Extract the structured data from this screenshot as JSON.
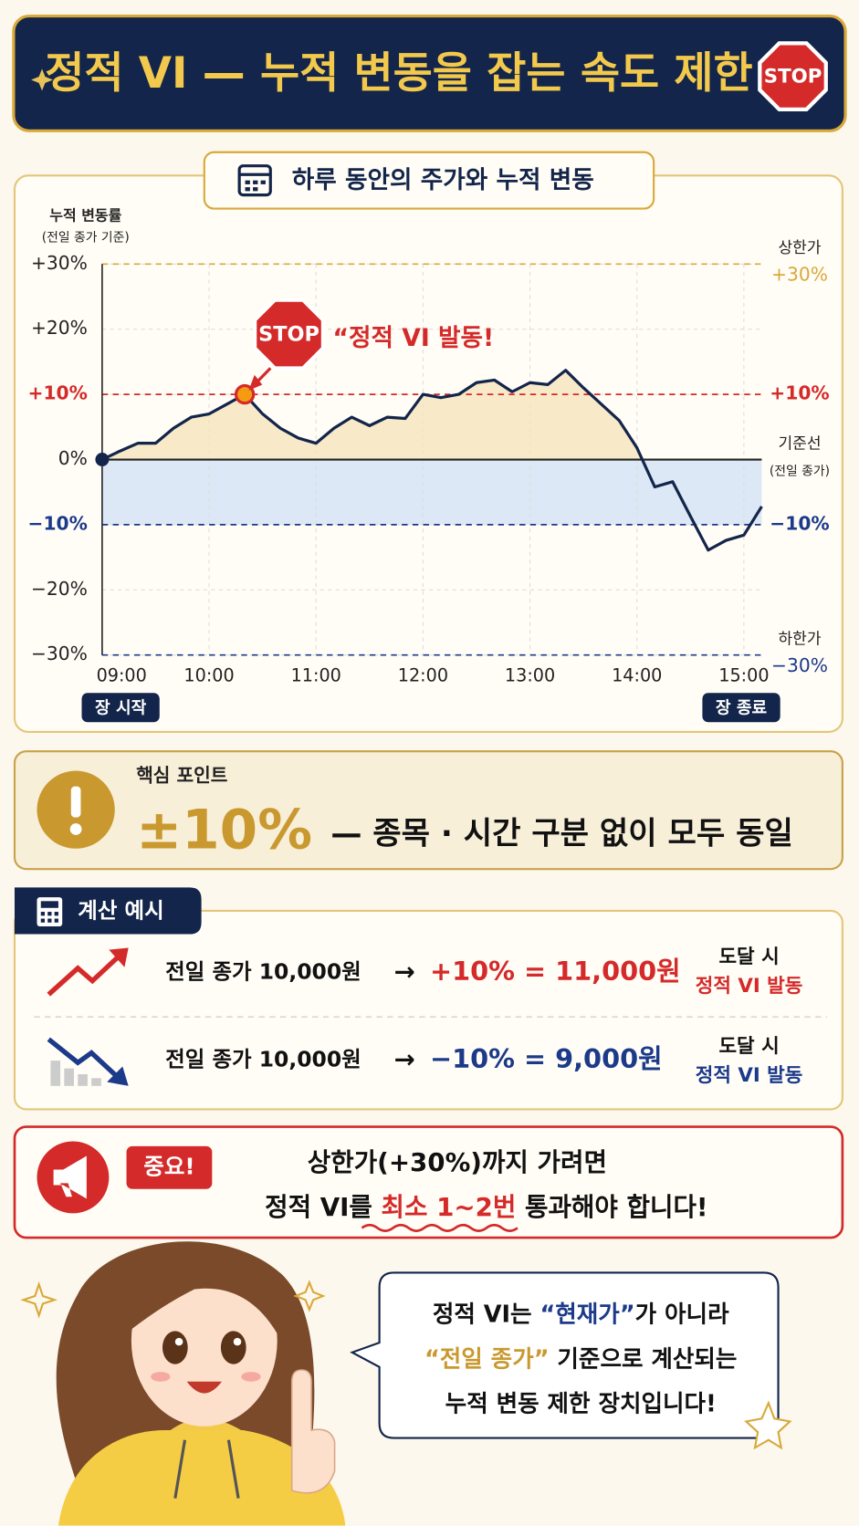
{
  "header": {
    "title": "정적 VI — 누적 변동을 잡는 속도 제한",
    "badge": "STOP"
  },
  "chart_data": {
    "type": "line",
    "title": "하루 동안의 주가와 누적 변동",
    "y_label": [
      "누적 변동률",
      "(전일 종가 기준)"
    ],
    "x": [
      "09:00",
      "09:10",
      "09:20",
      "09:30",
      "09:40",
      "09:50",
      "10:00",
      "10:10",
      "10:20",
      "10:30",
      "10:40",
      "10:50",
      "11:00",
      "11:10",
      "11:20",
      "11:30",
      "11:40",
      "11:50",
      "12:00",
      "12:10",
      "12:20",
      "12:30",
      "12:40",
      "12:50",
      "13:00",
      "13:10",
      "13:20",
      "13:30",
      "13:40",
      "13:50",
      "14:00",
      "14:10",
      "14:20",
      "14:30",
      "14:40",
      "14:50",
      "15:00",
      "15:10"
    ],
    "values": [
      0,
      1.3,
      2.5,
      2.5,
      4.8,
      6.5,
      7,
      8.5,
      10,
      7,
      4.8,
      3.3,
      2.5,
      4.8,
      6.5,
      5.2,
      6.5,
      6.3,
      10,
      9.5,
      10,
      11.8,
      12.2,
      10.4,
      11.8,
      11.5,
      13.7,
      11,
      8.5,
      6,
      1.8,
      -4.2,
      -3.4,
      -8.7,
      -13.9,
      -12.4,
      -11.6,
      -7.2
    ],
    "color": "#13254a",
    "ylim": [
      -30,
      30
    ],
    "yticks": [
      {
        "value": 30,
        "label": "+30%"
      },
      {
        "value": 20,
        "label": "+20%"
      },
      {
        "value": 10,
        "label": "+10%"
      },
      {
        "value": 0,
        "label": "0%"
      },
      {
        "value": -10,
        "label": "−10%"
      },
      {
        "value": -20,
        "label": "−20%"
      },
      {
        "value": -30,
        "label": "−30%"
      }
    ],
    "xticks": [
      "09:00",
      "10:00",
      "11:00",
      "12:00",
      "13:00",
      "14:00",
      "15:00"
    ],
    "grid": true,
    "reference_lines": [
      {
        "value": 30,
        "name": "상한가",
        "label": "+30%",
        "color": "#d9a93a"
      },
      {
        "value": 10,
        "label": "+10%",
        "color": "#d42a2a"
      },
      {
        "value": 0,
        "name": "기준선",
        "label": "(전일 종가)",
        "color": "#222222"
      },
      {
        "value": -10,
        "label": "−10%",
        "color": "#1c3a8a"
      },
      {
        "value": -30,
        "name": "하한가",
        "label": "−30%",
        "color": "#1c3a8a"
      }
    ],
    "annotation": {
      "x": "10:20",
      "value": 10,
      "sign": "STOP",
      "text": "“정적 VI 발동!"
    },
    "start_label": "장 시작",
    "end_label": "장 종료"
  },
  "key_point": {
    "label": "핵심 포인트",
    "value": "±10%",
    "text": "— 종목 · 시간 구분 없이 모두 동일"
  },
  "calc": {
    "title": "계산 예시",
    "rows": [
      {
        "base": "전일 종가 10,000원",
        "arrow": "→",
        "result": "+10% = 11,000원",
        "when": "도달 시",
        "event": "정적 VI 발동"
      },
      {
        "base": "전일 종가 10,000원",
        "arrow": "→",
        "result": "−10% = 9,000원",
        "when": "도달 시",
        "event": "정적 VI 발동"
      }
    ]
  },
  "important": {
    "tag": "중요!",
    "line1": "상한가(+30%)까지 가려면",
    "line2_before": "정적 VI를 ",
    "line2_highlight": "최소 1~2번",
    "line2_after": " 통과해야 합니다!"
  },
  "bubble": {
    "line1": [
      "정적 VI는 ",
      "“현재가”",
      "가 아니라"
    ],
    "line2": [
      "“전일 종가”",
      " 기준으로 계산되는"
    ],
    "line3": "누적 변동 제한 장치입니다!"
  }
}
